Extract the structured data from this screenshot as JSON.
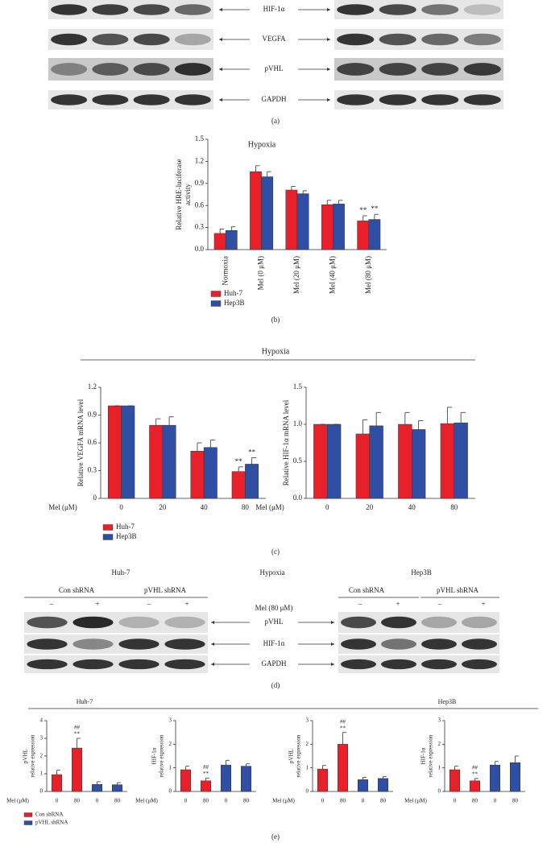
{
  "figure": {
    "panel_labels": [
      "(a)",
      "(b)",
      "(c)",
      "(d)",
      "(e)"
    ],
    "blot_a": {
      "rows": [
        "HIF-1α",
        "VEGFA",
        "pVHL",
        "GAPDH"
      ]
    },
    "blot_d": {
      "groups": [
        "Huh-7",
        "Hypoxia",
        "Hep3B"
      ],
      "shrna": [
        "Con shRNA",
        "pVHL shRNA",
        "Con shRNA",
        "pVHL shRNA"
      ],
      "treatment": [
        "–",
        "+",
        "–",
        "+",
        "–",
        "+",
        "–",
        "+"
      ],
      "treatment_label": "Mel (80 μM)",
      "rows": [
        "pVHL",
        "HIF-1α",
        "GAPDH"
      ]
    },
    "panel_e_title": "Hypoxia"
  },
  "chart_data": [
    {
      "type": "bar",
      "layout": "grouped",
      "title": "Hypoxia",
      "ylabel": [
        "Relative HRE-luciferase",
        "activity"
      ],
      "categories": [
        "Normoxia",
        "Mel (0 μM)",
        "Mel (20 μM)",
        "Mel (40 μM)",
        "Mel (80 μM)"
      ],
      "series": [
        {
          "name": "Huh-7",
          "color": "#e8202a",
          "values": [
            0.22,
            1.06,
            0.81,
            0.61,
            0.39
          ],
          "errors": [
            0.06,
            0.08,
            0.05,
            0.06,
            0.07
          ],
          "labels": [
            null,
            null,
            null,
            null,
            "**"
          ]
        },
        {
          "name": "Hep3B",
          "color": "#2e4fa3",
          "values": [
            0.26,
            0.99,
            0.76,
            0.62,
            0.41
          ],
          "errors": [
            0.05,
            0.07,
            0.04,
            0.05,
            0.07
          ],
          "labels": [
            null,
            null,
            null,
            null,
            "**"
          ]
        }
      ],
      "ylim": [
        0,
        1.5
      ],
      "yticks": [
        {
          "value": 0,
          "label": "0.0"
        },
        0.3,
        0.6,
        0.9,
        1.2,
        1.5
      ],
      "legend": "below"
    },
    {
      "type": "bar",
      "layout": "grouped",
      "title": "Hypoxia",
      "ylabel": [
        "Relative VEGFA mRNA level"
      ],
      "xlabel": "Mel (μM)",
      "categories": [
        "0",
        "20",
        "40",
        "80"
      ],
      "series": [
        {
          "name": "Huh-7",
          "color": "#e8202a",
          "values": [
            1.0,
            0.79,
            0.51,
            0.29
          ],
          "errors": [
            0,
            0.07,
            0.09,
            0.05
          ],
          "labels": [
            null,
            null,
            null,
            "**"
          ]
        },
        {
          "name": "Hep3B",
          "color": "#2e4fa3",
          "values": [
            1.0,
            0.79,
            0.55,
            0.37
          ],
          "errors": [
            0,
            0.09,
            0.08,
            0.07
          ],
          "labels": [
            null,
            null,
            null,
            "**"
          ]
        }
      ],
      "ylim": [
        0,
        1.2
      ],
      "yticks": [
        0,
        0.3,
        0.6,
        0.9,
        1.2
      ],
      "legend": "below"
    },
    {
      "type": "bar",
      "layout": "grouped",
      "ylabel": [
        "Relative HIF-1α mRNA level"
      ],
      "xlabel": "Mel (μM)",
      "categories": [
        "0",
        "20",
        "40",
        "80"
      ],
      "series": [
        {
          "color": "#e8202a",
          "values": [
            1.0,
            0.87,
            1.0,
            1.01
          ],
          "errors": [
            0,
            0.19,
            0.16,
            0.22
          ]
        },
        {
          "color": "#2e4fa3",
          "values": [
            1.0,
            0.98,
            0.93,
            1.02
          ],
          "errors": [
            0,
            0.18,
            0.12,
            0.14
          ]
        }
      ],
      "ylim": [
        0,
        1.5
      ],
      "yticks": [
        {
          "value": 0,
          "label": "0.0"
        },
        0.5,
        {
          "value": 1,
          "label": "1.0"
        },
        1.5
      ]
    },
    {
      "type": "bar",
      "layout": "single",
      "title": "Huh-7",
      "ylabel": [
        "pVHL",
        "relative expression"
      ],
      "xlabel": "Mel (μM)",
      "categories": [
        "0",
        "80",
        "0",
        "80"
      ],
      "series": [
        {
          "name": "Con shRNA",
          "color": "#e8202a",
          "values": [
            0.95,
            2.45,
            null,
            null
          ],
          "errors": [
            0.25,
            0.55,
            null,
            null
          ],
          "labels": [
            null,
            [
              "##",
              "**"
            ],
            null,
            null
          ]
        },
        {
          "name": "pVHL shRNA",
          "color": "#2e4fa3",
          "values": [
            null,
            null,
            0.4,
            0.38
          ],
          "errors": [
            null,
            null,
            0.15,
            0.12
          ]
        }
      ],
      "ylim": [
        0,
        4
      ],
      "yticks": [
        0,
        1,
        2,
        3,
        4
      ],
      "legend": "below"
    },
    {
      "type": "bar",
      "layout": "single",
      "ylabel": [
        "HIF-1α",
        "relative expression"
      ],
      "xlabel": "Mel (μM)",
      "categories": [
        "0",
        "80",
        "0",
        "80"
      ],
      "series": [
        {
          "color": "#e8202a",
          "values": [
            0.92,
            0.45,
            null,
            null
          ],
          "errors": [
            0.15,
            0.12,
            null,
            null
          ],
          "labels": [
            null,
            [
              "##",
              "**"
            ],
            null,
            null
          ]
        },
        {
          "color": "#2e4fa3",
          "values": [
            null,
            null,
            1.12,
            1.07
          ],
          "errors": [
            null,
            null,
            0.2,
            0.1
          ]
        }
      ],
      "ylim": [
        0,
        3
      ],
      "yticks": [
        0,
        1,
        2,
        3
      ]
    },
    {
      "type": "bar",
      "layout": "single",
      "ylabel": [
        "pVHL",
        "relative expression"
      ],
      "xlabel": "Mel (μM)",
      "categories": [
        "0",
        "80",
        "0",
        "80"
      ],
      "series": [
        {
          "color": "#e8202a",
          "values": [
            0.95,
            2.0,
            null,
            null
          ],
          "errors": [
            0.15,
            0.5,
            null,
            null
          ],
          "labels": [
            null,
            [
              "##",
              "**"
            ],
            null,
            null
          ]
        },
        {
          "color": "#2e4fa3",
          "values": [
            null,
            null,
            0.5,
            0.55
          ],
          "errors": [
            null,
            null,
            0.1,
            0.08
          ]
        }
      ],
      "ylim": [
        0,
        3
      ],
      "yticks": [
        0,
        1,
        2,
        3
      ]
    },
    {
      "type": "bar",
      "layout": "single",
      "title": "Hep3B",
      "ylabel": [
        "HIF-1α",
        "relative expression"
      ],
      "xlabel": "Mel (μM)",
      "categories": [
        "0",
        "80",
        "0",
        "80"
      ],
      "series": [
        {
          "color": "#e8202a",
          "values": [
            0.92,
            0.45,
            null,
            null
          ],
          "errors": [
            0.15,
            0.1,
            null,
            null
          ],
          "labels": [
            null,
            [
              "##",
              "**"
            ],
            null,
            null
          ]
        },
        {
          "color": "#2e4fa3",
          "values": [
            null,
            null,
            1.12,
            1.22
          ],
          "errors": [
            null,
            null,
            0.15,
            0.28
          ]
        }
      ],
      "ylim": [
        0,
        3
      ],
      "yticks": [
        0,
        1,
        2,
        3
      ]
    }
  ]
}
